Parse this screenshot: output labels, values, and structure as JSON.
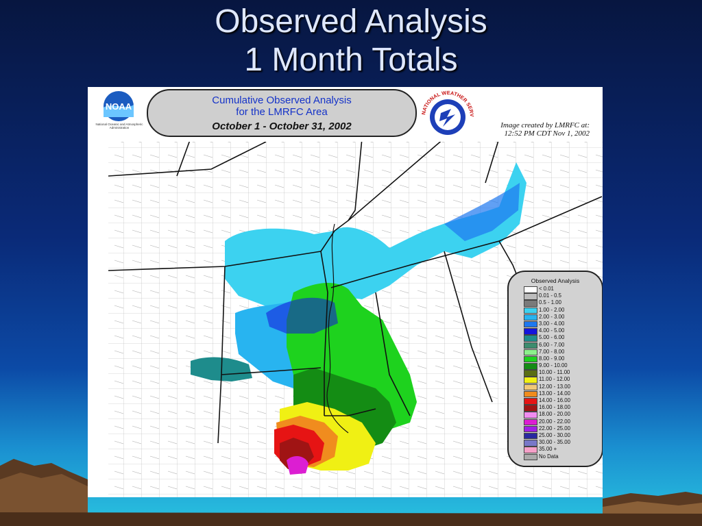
{
  "slide": {
    "title_line1": "Observed Analysis",
    "title_line2": "1 Month Totals"
  },
  "map": {
    "logo_left_text": "NOAA",
    "logo_left_subtext": "National Oceanic and Atmospheric Administration",
    "logo_right_text": "NATIONAL WEATHER SERVICE",
    "title_line1": "Cumulative Observed Analysis",
    "title_line2": "for the LMRFC Area",
    "date_range": "October 1 - October 31, 2002",
    "credit_line1": "Image created by LMRFC at:",
    "credit_line2": "12:52 PM CDT Nov 1, 2002"
  },
  "legend": {
    "title": "Observed Analysis",
    "items": [
      {
        "label": "< 0.01",
        "color": "#ffffff"
      },
      {
        "label": "0.01 - 0.5",
        "color": "#bdbdbd"
      },
      {
        "label": "0.5 - 1.00",
        "color": "#7a7a7a"
      },
      {
        "label": "1.00 - 2.00",
        "color": "#3cd2f0"
      },
      {
        "label": "2.00 - 3.00",
        "color": "#28b4f0"
      },
      {
        "label": "3.00 - 4.00",
        "color": "#1e78f0"
      },
      {
        "label": "4.00 - 5.00",
        "color": "#1414dc"
      },
      {
        "label": "5.00 - 6.00",
        "color": "#1e8c8c"
      },
      {
        "label": "6.00 - 7.00",
        "color": "#3c8c6e"
      },
      {
        "label": "7.00 - 8.00",
        "color": "#8cf08c"
      },
      {
        "label": "8.00 - 9.00",
        "color": "#1ed21e"
      },
      {
        "label": "9.00 - 10.00",
        "color": "#148c14"
      },
      {
        "label": "10.00 - 11.00",
        "color": "#5a6e14"
      },
      {
        "label": "11.00 - 12.00",
        "color": "#f0f014"
      },
      {
        "label": "12.00 - 13.00",
        "color": "#f0c878"
      },
      {
        "label": "13.00 - 14.00",
        "color": "#f08c1e"
      },
      {
        "label": "14.00 - 16.00",
        "color": "#e61414"
      },
      {
        "label": "16.00 - 18.00",
        "color": "#a01414"
      },
      {
        "label": "18.00 - 20.00",
        "color": "#f08cf0"
      },
      {
        "label": "20.00 - 22.00",
        "color": "#dc1ed2"
      },
      {
        "label": "22.00 - 25.00",
        "color": "#a01ee6"
      },
      {
        "label": "25.00 - 30.00",
        "color": "#2828a0"
      },
      {
        "label": "30.00 - 35.00",
        "color": "#7878c8"
      },
      {
        "label": "35.00 +",
        "color": "#f5a0c8"
      },
      {
        "label": "No Data",
        "color": "#aaaaaa"
      }
    ]
  }
}
